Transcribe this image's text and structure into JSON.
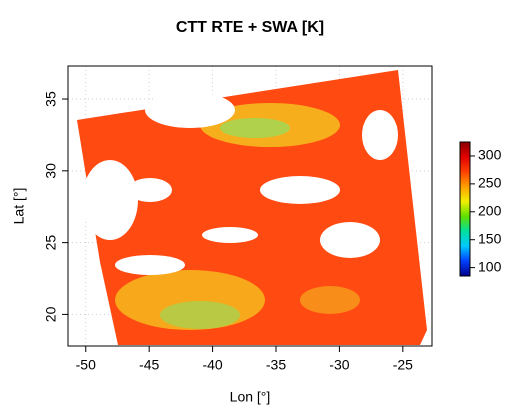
{
  "chart_data": {
    "type": "raster",
    "title": "CTT RTE + SWA [K]",
    "xlabel": "Lon [°]",
    "ylabel": "Lat [°]",
    "xlim": [
      -51.4,
      -22.7
    ],
    "xticks": [
      -50,
      -45,
      -40,
      -35,
      -30,
      -25
    ],
    "ylim": [
      17.8,
      37.3
    ],
    "yticks": [
      20,
      25,
      30,
      35
    ],
    "grid": true,
    "colorbar": {
      "lim": [
        85,
        325
      ],
      "ticks": [
        100,
        150,
        200,
        250,
        300
      ],
      "colors": [
        "#00008b",
        "#0040ff",
        "#00c8ff",
        "#00e0a0",
        "#60e000",
        "#f0f000",
        "#ffa000",
        "#ff4000",
        "#e00000",
        "#8b0000"
      ]
    }
  }
}
